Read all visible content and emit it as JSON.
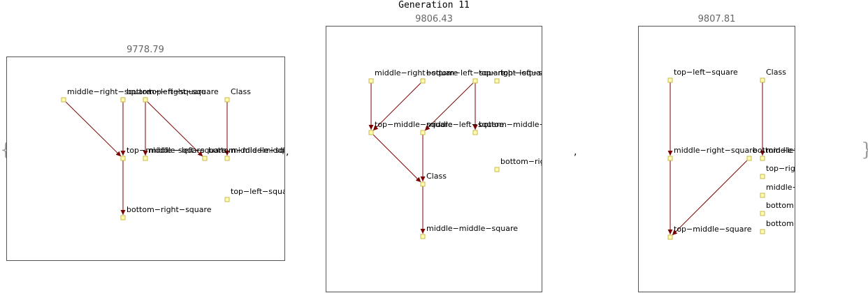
{
  "title": "Generation 11",
  "colors": {
    "edge": "#7a0000",
    "node_fill": "#fffcb0",
    "node_stroke": "#c8b84a",
    "frame": "#555555",
    "score": "#666666"
  },
  "open_brace": "{",
  "close_brace": "}",
  "separator": ",",
  "graphs": [
    {
      "score": "9778.79",
      "nodes": [
        {
          "id": "mrs",
          "label": "middle−right−square"
        },
        {
          "id": "brs",
          "label": "bottom−left−square"
        },
        {
          "id": "trs",
          "label": "top−right−square"
        },
        {
          "id": "cls",
          "label": "Class"
        },
        {
          "id": "tms",
          "label": "top−middle−square"
        },
        {
          "id": "mls",
          "label": "middle−left−square"
        },
        {
          "id": "bms",
          "label": "bottom−middle−square"
        },
        {
          "id": "mms",
          "label": "middle−middle−square"
        },
        {
          "id": "brs2",
          "label": "bottom−right−square"
        },
        {
          "id": "tls",
          "label": "top−left−square"
        }
      ],
      "edges": [
        [
          "mrs",
          "tms"
        ],
        [
          "brs",
          "tms"
        ],
        [
          "trs",
          "mls"
        ],
        [
          "trs",
          "bms"
        ],
        [
          "cls",
          "mms"
        ],
        [
          "tms",
          "brs2"
        ]
      ]
    },
    {
      "score": "9806.43",
      "nodes": [
        {
          "id": "mrs",
          "label": "middle−right−square"
        },
        {
          "id": "bls",
          "label": "bottom−left−square"
        },
        {
          "id": "trs",
          "label": "top−right−square"
        },
        {
          "id": "tls",
          "label": "top−left−square"
        },
        {
          "id": "tms",
          "label": "top−middle−square"
        },
        {
          "id": "mls",
          "label": "middle−left−square"
        },
        {
          "id": "bms",
          "label": "bottom−middle−square"
        },
        {
          "id": "brs",
          "label": "bottom−right−square"
        },
        {
          "id": "cls",
          "label": "Class"
        },
        {
          "id": "mms",
          "label": "middle−middle−square"
        }
      ],
      "edges": [
        [
          "mrs",
          "tms"
        ],
        [
          "bls",
          "tms"
        ],
        [
          "trs",
          "mls"
        ],
        [
          "trs",
          "bms"
        ],
        [
          "tms",
          "cls"
        ],
        [
          "mls",
          "cls"
        ],
        [
          "cls",
          "mms"
        ]
      ]
    },
    {
      "score": "9807.81",
      "nodes": [
        {
          "id": "tls",
          "label": "top−left−square"
        },
        {
          "id": "cls",
          "label": "Class"
        },
        {
          "id": "mrs",
          "label": "middle−right−square"
        },
        {
          "id": "bls",
          "label": "bottom−left−square"
        },
        {
          "id": "mms",
          "label": "middle−middle−square"
        },
        {
          "id": "trs",
          "label": "top−right−square"
        },
        {
          "id": "mls",
          "label": "middle−left−square"
        },
        {
          "id": "bms",
          "label": "bottom−middle−square"
        },
        {
          "id": "brs",
          "label": "bottom−right−square"
        },
        {
          "id": "tms",
          "label": "top−middle−square"
        }
      ],
      "edges": [
        [
          "tls",
          "mrs"
        ],
        [
          "cls",
          "mms"
        ],
        [
          "mrs",
          "tms"
        ],
        [
          "bls",
          "tms"
        ]
      ]
    }
  ]
}
